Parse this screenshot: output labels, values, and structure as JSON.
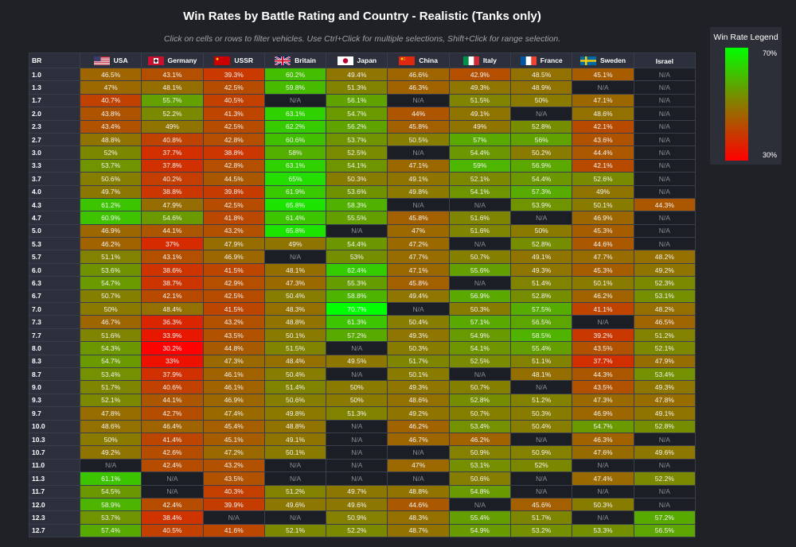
{
  "title": "Win Rates by Battle Rating and Country - Realistic (Tanks only)",
  "subtitle": "Click on cells or rows to filter vehicles. Use Ctrl+Click for multiple selections, Shift+Click for range selection.",
  "legend": {
    "title": "Win Rate Legend",
    "max_label": "70%",
    "min_label": "30%",
    "colors": {
      "high": "#00ff00",
      "mid": "#8a7a00",
      "low": "#ff0000"
    }
  },
  "table": {
    "br_header": "BR",
    "countries": [
      {
        "name": "USA",
        "flag": "usa-flag-icon"
      },
      {
        "name": "Germany",
        "flag": "germany-flag-icon"
      },
      {
        "name": "USSR",
        "flag": "ussr-flag-icon"
      },
      {
        "name": "Britain",
        "flag": "britain-flag-icon"
      },
      {
        "name": "Japan",
        "flag": "japan-flag-icon"
      },
      {
        "name": "China",
        "flag": "china-flag-icon"
      },
      {
        "name": "Italy",
        "flag": "italy-flag-icon"
      },
      {
        "name": "France",
        "flag": "france-flag-icon"
      },
      {
        "name": "Sweden",
        "flag": "sweden-flag-icon"
      },
      {
        "name": "Israel",
        "flag": ""
      }
    ],
    "na_text": "N/A",
    "rows": [
      {
        "br": "1.0",
        "values": [
          "46.5%",
          "43.1%",
          "39.3%",
          "60.2%",
          "49.4%",
          "46.6%",
          "42.9%",
          "48.5%",
          "45.1%",
          "N/A"
        ]
      },
      {
        "br": "1.3",
        "values": [
          "47%",
          "48.1%",
          "42.5%",
          "59.8%",
          "51.3%",
          "46.3%",
          "49.3%",
          "48.9%",
          "N/A",
          "N/A"
        ]
      },
      {
        "br": "1.7",
        "values": [
          "40.7%",
          "55.7%",
          "40.5%",
          "N/A",
          "56.1%",
          "N/A",
          "51.5%",
          "50%",
          "47.1%",
          "N/A"
        ]
      },
      {
        "br": "2.0",
        "values": [
          "43.8%",
          "52.2%",
          "41.3%",
          "63.1%",
          "54.7%",
          "44%",
          "49.1%",
          "N/A",
          "48.6%",
          "N/A"
        ]
      },
      {
        "br": "2.3",
        "values": [
          "43.4%",
          "49%",
          "42.5%",
          "62.2%",
          "56.2%",
          "45.8%",
          "49%",
          "52.8%",
          "42.1%",
          "N/A"
        ]
      },
      {
        "br": "2.7",
        "values": [
          "48.8%",
          "40.8%",
          "42.8%",
          "60.6%",
          "53.7%",
          "50.5%",
          "57%",
          "56%",
          "43.6%",
          "N/A"
        ]
      },
      {
        "br": "3.0",
        "values": [
          "52%",
          "37.7%",
          "38.8%",
          "58%",
          "52.5%",
          "N/A",
          "54.4%",
          "50.2%",
          "44.4%",
          "N/A"
        ]
      },
      {
        "br": "3.3",
        "values": [
          "53.7%",
          "37.8%",
          "42.8%",
          "63.1%",
          "54.1%",
          "47.1%",
          "59%",
          "56.9%",
          "42.1%",
          "N/A"
        ]
      },
      {
        "br": "3.7",
        "values": [
          "50.6%",
          "40.2%",
          "44.5%",
          "65%",
          "50.3%",
          "49.1%",
          "52.1%",
          "54.4%",
          "52.6%",
          "N/A"
        ]
      },
      {
        "br": "4.0",
        "values": [
          "49.7%",
          "38.8%",
          "39.8%",
          "61.9%",
          "53.6%",
          "49.8%",
          "54.1%",
          "57.3%",
          "49%",
          "N/A"
        ]
      },
      {
        "br": "4.3",
        "values": [
          "61.2%",
          "47.9%",
          "42.5%",
          "65.8%",
          "58.3%",
          "N/A",
          "N/A",
          "53.9%",
          "50.1%",
          "44.3%"
        ]
      },
      {
        "br": "4.7",
        "values": [
          "60.9%",
          "54.6%",
          "41.8%",
          "61.4%",
          "55.5%",
          "45.8%",
          "51.6%",
          "N/A",
          "46.9%",
          "N/A"
        ]
      },
      {
        "br": "5.0",
        "values": [
          "46.9%",
          "44.1%",
          "43.2%",
          "65.8%",
          "N/A",
          "47%",
          "51.6%",
          "50%",
          "45.3%",
          "N/A"
        ]
      },
      {
        "br": "5.3",
        "values": [
          "46.2%",
          "37%",
          "47.9%",
          "49%",
          "54.4%",
          "47.2%",
          "N/A",
          "52.8%",
          "44.6%",
          "N/A"
        ]
      },
      {
        "br": "5.7",
        "values": [
          "51.1%",
          "43.1%",
          "46.9%",
          "N/A",
          "53%",
          "47.7%",
          "50.7%",
          "49.1%",
          "47.7%",
          "48.2%"
        ]
      },
      {
        "br": "6.0",
        "values": [
          "53.6%",
          "38.6%",
          "41.5%",
          "48.1%",
          "62.4%",
          "47.1%",
          "55.6%",
          "49.3%",
          "45.3%",
          "49.2%"
        ]
      },
      {
        "br": "6.3",
        "values": [
          "54.7%",
          "38.7%",
          "42.9%",
          "47.3%",
          "55.3%",
          "45.8%",
          "N/A",
          "51.4%",
          "50.1%",
          "52.3%"
        ]
      },
      {
        "br": "6.7",
        "values": [
          "50.7%",
          "42.1%",
          "42.5%",
          "50.4%",
          "58.8%",
          "49.4%",
          "56.9%",
          "52.8%",
          "46.2%",
          "53.1%"
        ]
      },
      {
        "br": "7.0",
        "values": [
          "50%",
          "48.4%",
          "41.5%",
          "48.3%",
          "70.7%",
          "N/A",
          "50.3%",
          "57.5%",
          "41.1%",
          "48.2%"
        ]
      },
      {
        "br": "7.3",
        "values": [
          "46.7%",
          "36.3%",
          "43.2%",
          "48.8%",
          "61.3%",
          "50.4%",
          "57.1%",
          "56.5%",
          "N/A",
          "46.5%"
        ]
      },
      {
        "br": "7.7",
        "values": [
          "51.6%",
          "33.9%",
          "43.5%",
          "50.1%",
          "57.2%",
          "49.3%",
          "54.9%",
          "58.5%",
          "39.2%",
          "51.2%"
        ]
      },
      {
        "br": "8.0",
        "values": [
          "54.3%",
          "30.2%",
          "44.8%",
          "51.5%",
          "N/A",
          "50.3%",
          "54.1%",
          "55.4%",
          "43.5%",
          "52.1%"
        ]
      },
      {
        "br": "8.3",
        "values": [
          "54.7%",
          "33%",
          "47.3%",
          "48.4%",
          "49.5%",
          "51.7%",
          "52.5%",
          "51.1%",
          "37.7%",
          "47.9%"
        ]
      },
      {
        "br": "8.7",
        "values": [
          "53.4%",
          "37.9%",
          "46.1%",
          "50.4%",
          "N/A",
          "50.1%",
          "N/A",
          "48.1%",
          "44.3%",
          "53.4%"
        ]
      },
      {
        "br": "9.0",
        "values": [
          "51.7%",
          "40.6%",
          "46.1%",
          "51.4%",
          "50%",
          "49.3%",
          "50.7%",
          "N/A",
          "43.5%",
          "49.3%"
        ]
      },
      {
        "br": "9.3",
        "values": [
          "52.1%",
          "44.1%",
          "46.9%",
          "50.6%",
          "50%",
          "48.6%",
          "52.8%",
          "51.2%",
          "47.3%",
          "47.8%"
        ]
      },
      {
        "br": "9.7",
        "values": [
          "47.8%",
          "42.7%",
          "47.4%",
          "49.8%",
          "51.3%",
          "49.2%",
          "50.7%",
          "50.3%",
          "46.9%",
          "49.1%"
        ]
      },
      {
        "br": "10.0",
        "values": [
          "48.6%",
          "46.4%",
          "45.4%",
          "48.8%",
          "N/A",
          "46.2%",
          "53.4%",
          "50.4%",
          "54.7%",
          "52.8%"
        ]
      },
      {
        "br": "10.3",
        "values": [
          "50%",
          "41.4%",
          "45.1%",
          "49.1%",
          "N/A",
          "46.7%",
          "46.2%",
          "N/A",
          "46.3%",
          "N/A"
        ]
      },
      {
        "br": "10.7",
        "values": [
          "49.2%",
          "42.6%",
          "47.2%",
          "50.1%",
          "N/A",
          "N/A",
          "50.9%",
          "50.9%",
          "47.6%",
          "49.6%"
        ]
      },
      {
        "br": "11.0",
        "values": [
          "N/A",
          "42.4%",
          "43.2%",
          "N/A",
          "N/A",
          "47%",
          "53.1%",
          "52%",
          "N/A",
          "N/A"
        ]
      },
      {
        "br": "11.3",
        "values": [
          "61.1%",
          "N/A",
          "43.5%",
          "N/A",
          "N/A",
          "N/A",
          "50.6%",
          "N/A",
          "47.4%",
          "52.2%"
        ]
      },
      {
        "br": "11.7",
        "values": [
          "54.5%",
          "N/A",
          "40.3%",
          "51.2%",
          "49.7%",
          "48.8%",
          "54.8%",
          "N/A",
          "N/A",
          "N/A"
        ]
      },
      {
        "br": "12.0",
        "values": [
          "58.9%",
          "42.4%",
          "39.9%",
          "49.6%",
          "49.6%",
          "44.6%",
          "N/A",
          "45.6%",
          "50.3%",
          "N/A"
        ]
      },
      {
        "br": "12.3",
        "values": [
          "53.7%",
          "38.4%",
          "N/A",
          "N/A",
          "50.9%",
          "48.3%",
          "55.4%",
          "51.7%",
          "N/A",
          "57.2%"
        ]
      },
      {
        "br": "12.7",
        "values": [
          "57.4%",
          "40.5%",
          "41.6%",
          "52.1%",
          "52.2%",
          "48.7%",
          "54.9%",
          "53.2%",
          "53.3%",
          "56.5%"
        ]
      }
    ]
  }
}
